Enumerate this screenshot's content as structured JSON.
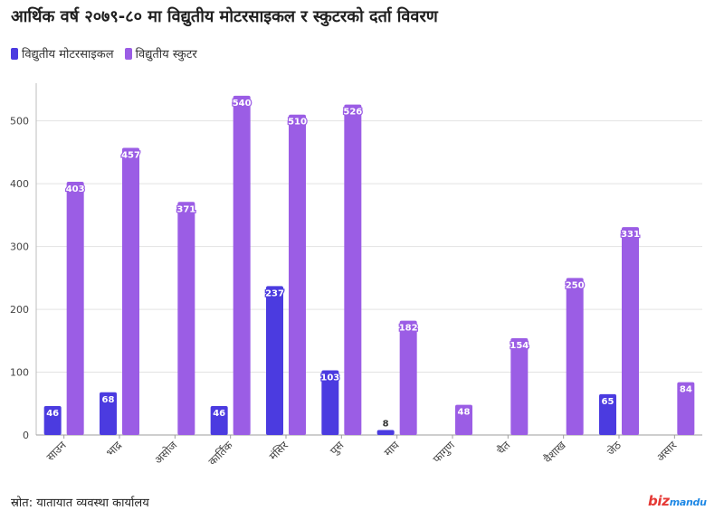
{
  "header": {
    "title": "आर्थिक वर्ष २०७९-८० मा विद्युतीय मोटरसाइकल र स्कुटरको दर्ता विवरण"
  },
  "legend": {
    "items": [
      {
        "label": "विद्युतीय मोटरसाइकल",
        "color": "#4b3be0"
      },
      {
        "label": "विद्युतीय स्कुटर",
        "color": "#9b5de5"
      }
    ]
  },
  "footer": {
    "source": "स्रोत: यातायात व्यवस्था कार्यालय",
    "logo_primary": "biz",
    "logo_secondary": "mandu"
  },
  "chart_data": {
    "type": "bar",
    "categories": [
      "साउन",
      "भाद्र",
      "असोज",
      "कार्तिक",
      "मंसिर",
      "पुस",
      "माघ",
      "फागुण",
      "चैत",
      "वैशाख",
      "जेठ",
      "असार"
    ],
    "series": [
      {
        "name": "विद्युतीय मोटरसाइकल",
        "color": "#4b3be0",
        "values": [
          46,
          68,
          null,
          46,
          237,
          103,
          8,
          null,
          null,
          null,
          65,
          null
        ]
      },
      {
        "name": "विद्युतीय स्कुटर",
        "color": "#9b5de5",
        "values": [
          403,
          457,
          371,
          540,
          510,
          526,
          182,
          48,
          154,
          250,
          331,
          84
        ]
      }
    ],
    "yticks": [
      0,
      100,
      200,
      300,
      400,
      500
    ],
    "ylim": [
      0,
      560
    ],
    "grid": true,
    "legend_position": "top-left"
  }
}
